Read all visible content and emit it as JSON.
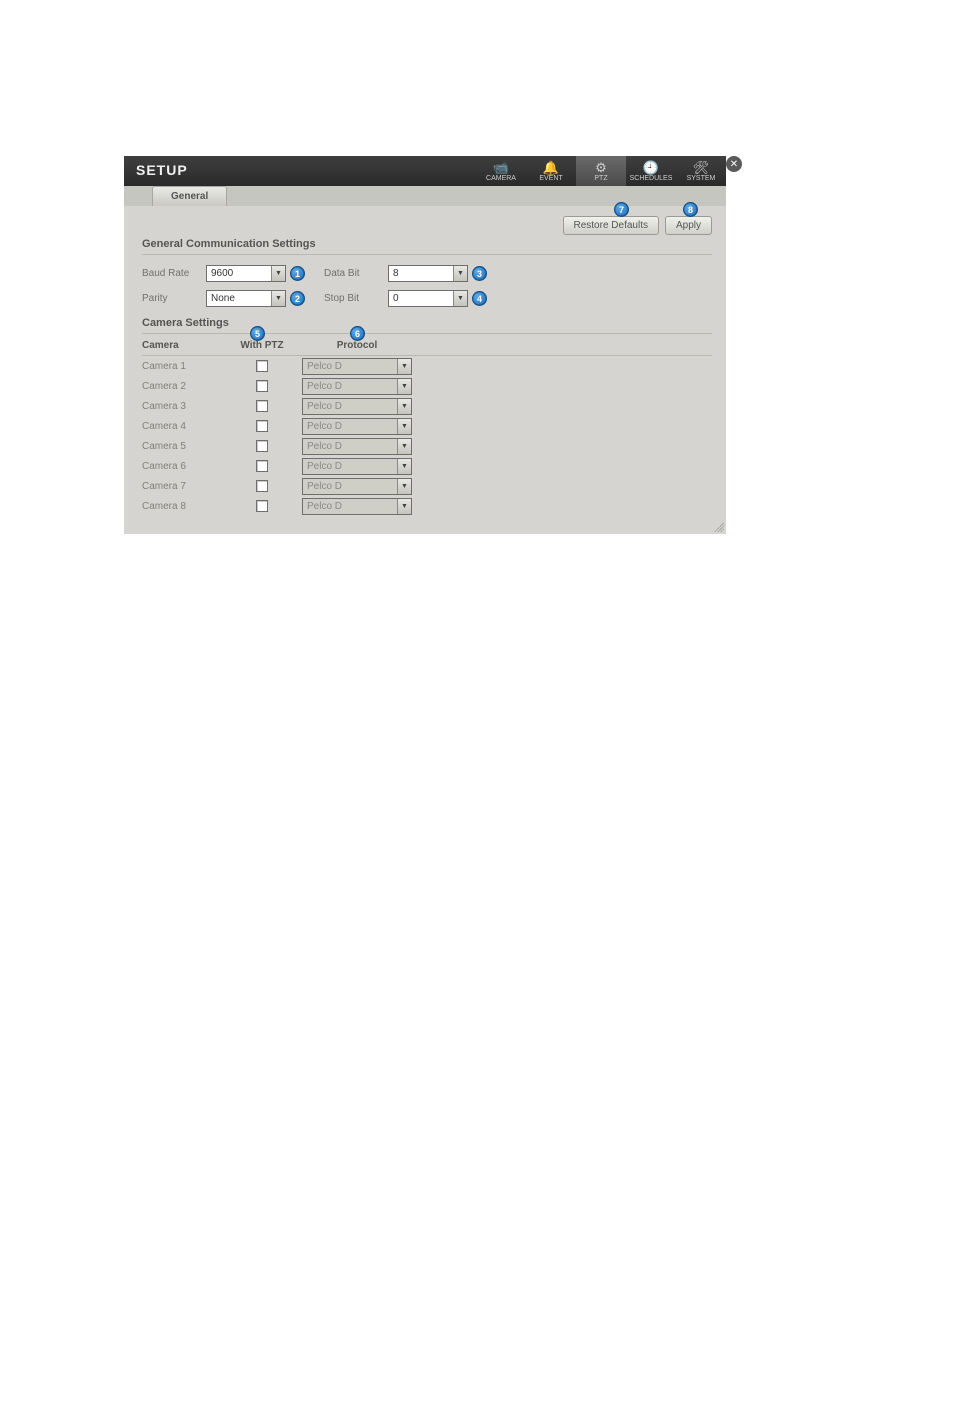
{
  "window": {
    "title": "SETUP",
    "tabs": [
      {
        "id": "camera",
        "label": "CAMERA",
        "icon": "📹"
      },
      {
        "id": "event",
        "label": "EVENT",
        "icon": "🔔"
      },
      {
        "id": "ptz",
        "label": "PTZ",
        "icon": "⚙",
        "active": true
      },
      {
        "id": "schedules",
        "label": "SCHEDULES",
        "icon": "🕘"
      },
      {
        "id": "system",
        "label": "SYSTEM",
        "icon": "🛠"
      }
    ],
    "close_icon": "✕"
  },
  "subtab": {
    "label": "General"
  },
  "actions": {
    "restore_label": "Restore Defaults",
    "apply_label": "Apply"
  },
  "sections": {
    "comm_title": "General Communication Settings",
    "camera_title": "Camera Settings"
  },
  "comm": {
    "baud_label": "Baud Rate",
    "baud_value": "9600",
    "parity_label": "Parity",
    "parity_value": "None",
    "databit_label": "Data Bit",
    "databit_value": "8",
    "stopbit_label": "Stop Bit",
    "stopbit_value": "0"
  },
  "callouts": {
    "c1": "1",
    "c2": "2",
    "c3": "3",
    "c4": "4",
    "c5": "5",
    "c6": "6",
    "c7": "7",
    "c8": "8"
  },
  "camera_table": {
    "col_camera": "Camera",
    "col_withptz": "With PTZ",
    "col_protocol": "Protocol",
    "rows": [
      {
        "name": "Camera 1",
        "protocol": "Pelco D"
      },
      {
        "name": "Camera 2",
        "protocol": "Pelco D"
      },
      {
        "name": "Camera 3",
        "protocol": "Pelco D"
      },
      {
        "name": "Camera 4",
        "protocol": "Pelco D"
      },
      {
        "name": "Camera 5",
        "protocol": "Pelco D"
      },
      {
        "name": "Camera 6",
        "protocol": "Pelco D"
      },
      {
        "name": "Camera 7",
        "protocol": "Pelco D"
      },
      {
        "name": "Camera 8",
        "protocol": "Pelco D"
      }
    ]
  },
  "style": {
    "window_bg": "#d5d4d0",
    "title_bg_from": "#3f3f3f",
    "title_bg_to": "#2a2a2a",
    "callout_bg_from": "#5aa7e8",
    "callout_bg_to": "#1f6fb8",
    "text_muted": "#808078",
    "border": "#b8b8b0"
  }
}
